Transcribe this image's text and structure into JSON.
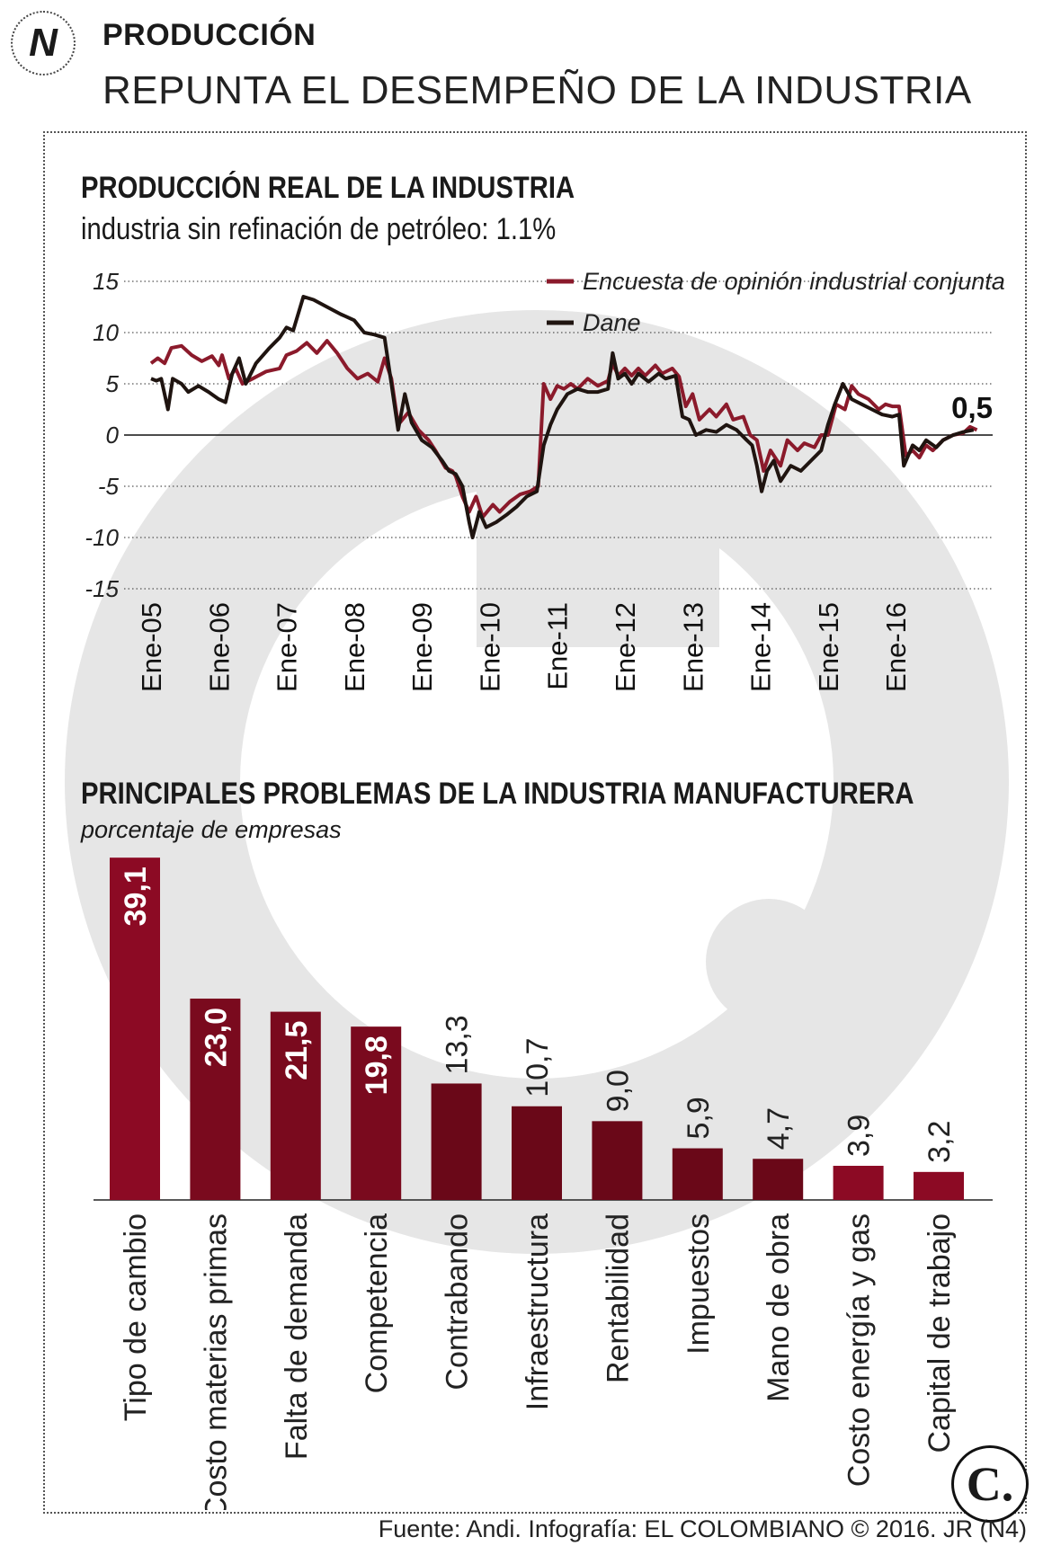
{
  "header": {
    "section": "PRODUCCIÓN",
    "title": "REPUNTA EL DESEMPEÑO DE LA INDUSTRIA"
  },
  "chart1": {
    "title": "PRODUCCIÓN REAL DE LA INDUSTRIA",
    "subtitle": "industria sin refinación de petróleo: 1.1%"
  },
  "chart2": {
    "title": "PRINCIPALES PROBLEMAS DE LA INDUSTRIA MANUFACTURERA",
    "subtitle": "porcentaje de empresas"
  },
  "footer": {
    "source": "Fuente: Andi. Infografía: EL COLOMBIANO © 2016. JR (N4)"
  },
  "chart_data": [
    {
      "type": "line",
      "ylim": [
        -15,
        15
      ],
      "yticks": [
        "15",
        "10",
        "5",
        "0",
        "-5",
        "-10",
        "-15"
      ],
      "xticks": [
        "Ene-05",
        "Ene-06",
        "Ene-07",
        "Ene-08",
        "Ene-09",
        "Ene-10",
        "Ene-11",
        "Ene-12",
        "Ene-13",
        "Ene-14",
        "Ene-15",
        "Ene-16"
      ],
      "grid": true,
      "legend_position": "top-right",
      "end_label": "0,5",
      "series": [
        {
          "name": "Encuesta de opinión industrial conjunta",
          "color": "#8b1a2b",
          "points": [
            [
              2005.0,
              7
            ],
            [
              2005.1,
              7.5
            ],
            [
              2005.2,
              7
            ],
            [
              2005.3,
              8.5
            ],
            [
              2005.45,
              8.7
            ],
            [
              2005.6,
              7.8
            ],
            [
              2005.75,
              7.2
            ],
            [
              2005.9,
              7.7
            ],
            [
              2006.0,
              6.8
            ],
            [
              2006.05,
              7.8
            ],
            [
              2006.15,
              5.5
            ],
            [
              2006.25,
              6.5
            ],
            [
              2006.35,
              5
            ],
            [
              2006.5,
              5.5
            ],
            [
              2006.7,
              6.2
            ],
            [
              2006.9,
              6.5
            ],
            [
              2007.0,
              7.8
            ],
            [
              2007.15,
              8.2
            ],
            [
              2007.3,
              9
            ],
            [
              2007.45,
              8
            ],
            [
              2007.6,
              9.2
            ],
            [
              2007.75,
              8
            ],
            [
              2007.9,
              6.5
            ],
            [
              2008.05,
              5.5
            ],
            [
              2008.2,
              6
            ],
            [
              2008.35,
              5.2
            ],
            [
              2008.45,
              7.5
            ],
            [
              2008.55,
              5.5
            ],
            [
              2008.65,
              1
            ],
            [
              2008.8,
              2.2
            ],
            [
              2008.95,
              0.5
            ],
            [
              2009.1,
              -0.5
            ],
            [
              2009.2,
              -1.5
            ],
            [
              2009.35,
              -3.2
            ],
            [
              2009.45,
              -3.5
            ],
            [
              2009.5,
              -4
            ],
            [
              2009.6,
              -6
            ],
            [
              2009.7,
              -7.5
            ],
            [
              2009.8,
              -6
            ],
            [
              2009.9,
              -8
            ],
            [
              2010.05,
              -6.8
            ],
            [
              2010.15,
              -7.5
            ],
            [
              2010.3,
              -6.5
            ],
            [
              2010.45,
              -5.8
            ],
            [
              2010.6,
              -5.5
            ],
            [
              2010.72,
              -5
            ],
            [
              2010.8,
              5
            ],
            [
              2010.9,
              3.5
            ],
            [
              2011.0,
              4.8
            ],
            [
              2011.1,
              4.5
            ],
            [
              2011.2,
              5
            ],
            [
              2011.3,
              4.5
            ],
            [
              2011.45,
              5.5
            ],
            [
              2011.6,
              4.8
            ],
            [
              2011.75,
              5.3
            ],
            [
              2011.82,
              7
            ],
            [
              2011.9,
              5.8
            ],
            [
              2012.0,
              6.5
            ],
            [
              2012.1,
              5.8
            ],
            [
              2012.2,
              6.5
            ],
            [
              2012.3,
              5.8
            ],
            [
              2012.45,
              6.8
            ],
            [
              2012.55,
              6
            ],
            [
              2012.7,
              6.5
            ],
            [
              2012.8,
              5.7
            ],
            [
              2012.9,
              2.8
            ],
            [
              2013.0,
              4
            ],
            [
              2013.1,
              1.5
            ],
            [
              2013.25,
              2.5
            ],
            [
              2013.35,
              1.8
            ],
            [
              2013.5,
              3
            ],
            [
              2013.6,
              1.5
            ],
            [
              2013.75,
              1.8
            ],
            [
              2013.85,
              0
            ],
            [
              2013.95,
              -0.5
            ],
            [
              2014.05,
              -3.5
            ],
            [
              2014.15,
              -1.5
            ],
            [
              2014.3,
              -3
            ],
            [
              2014.4,
              -0.5
            ],
            [
              2014.55,
              -1.5
            ],
            [
              2014.65,
              -0.8
            ],
            [
              2014.8,
              -1.2
            ],
            [
              2014.9,
              0
            ],
            [
              2015.0,
              0
            ],
            [
              2015.12,
              3
            ],
            [
              2015.25,
              2.5
            ],
            [
              2015.35,
              4.8
            ],
            [
              2015.45,
              4
            ],
            [
              2015.6,
              3.5
            ],
            [
              2015.75,
              2.5
            ],
            [
              2015.85,
              3
            ],
            [
              2015.95,
              2.8
            ],
            [
              2016.05,
              2.8
            ],
            [
              2016.15,
              -2
            ],
            [
              2016.25,
              -1.5
            ],
            [
              2016.35,
              -2.2
            ],
            [
              2016.45,
              -1
            ],
            [
              2016.55,
              -1.5
            ],
            [
              2016.7,
              -0.5
            ],
            [
              2016.85,
              0
            ],
            [
              2017.0,
              0.2
            ],
            [
              2017.1,
              0.8
            ],
            [
              2017.2,
              0.5
            ]
          ]
        },
        {
          "name": "Dane",
          "color": "#1f1410",
          "points": [
            [
              2005.0,
              5.5
            ],
            [
              2005.08,
              5.3
            ],
            [
              2005.15,
              5.5
            ],
            [
              2005.25,
              2.5
            ],
            [
              2005.32,
              5.5
            ],
            [
              2005.45,
              5
            ],
            [
              2005.55,
              4.2
            ],
            [
              2005.7,
              4.8
            ],
            [
              2005.85,
              4.2
            ],
            [
              2006.0,
              3.5
            ],
            [
              2006.1,
              3.2
            ],
            [
              2006.2,
              6
            ],
            [
              2006.3,
              7.5
            ],
            [
              2006.4,
              5
            ],
            [
              2006.55,
              7
            ],
            [
              2006.75,
              8.5
            ],
            [
              2006.9,
              9.5
            ],
            [
              2007.0,
              10.5
            ],
            [
              2007.1,
              10.2
            ],
            [
              2007.25,
              13.5
            ],
            [
              2007.4,
              13.2
            ],
            [
              2007.6,
              12.5
            ],
            [
              2007.8,
              11.8
            ],
            [
              2008.0,
              11.2
            ],
            [
              2008.15,
              10
            ],
            [
              2008.3,
              9.8
            ],
            [
              2008.45,
              9.5
            ],
            [
              2008.55,
              5
            ],
            [
              2008.65,
              0.5
            ],
            [
              2008.75,
              4
            ],
            [
              2008.85,
              1.2
            ],
            [
              2009.0,
              -0.5
            ],
            [
              2009.15,
              -1.2
            ],
            [
              2009.3,
              -2.5
            ],
            [
              2009.4,
              -3.5
            ],
            [
              2009.5,
              -3.8
            ],
            [
              2009.6,
              -5
            ],
            [
              2009.7,
              -8.5
            ],
            [
              2009.75,
              -10
            ],
            [
              2009.85,
              -7.5
            ],
            [
              2009.95,
              -9
            ],
            [
              2010.1,
              -8.5
            ],
            [
              2010.25,
              -7.8
            ],
            [
              2010.4,
              -7
            ],
            [
              2010.55,
              -6
            ],
            [
              2010.7,
              -5.5
            ],
            [
              2010.8,
              -1
            ],
            [
              2010.9,
              1
            ],
            [
              2011.0,
              2.5
            ],
            [
              2011.15,
              4
            ],
            [
              2011.3,
              4.5
            ],
            [
              2011.45,
              4.2
            ],
            [
              2011.6,
              4.2
            ],
            [
              2011.75,
              4.5
            ],
            [
              2011.82,
              8
            ],
            [
              2011.9,
              5.5
            ],
            [
              2012.0,
              6
            ],
            [
              2012.1,
              5
            ],
            [
              2012.2,
              6
            ],
            [
              2012.35,
              5.2
            ],
            [
              2012.5,
              6
            ],
            [
              2012.6,
              5.5
            ],
            [
              2012.75,
              5.8
            ],
            [
              2012.85,
              1.8
            ],
            [
              2012.95,
              1.5
            ],
            [
              2013.05,
              0
            ],
            [
              2013.2,
              0.5
            ],
            [
              2013.35,
              0.3
            ],
            [
              2013.5,
              1
            ],
            [
              2013.65,
              0.5
            ],
            [
              2013.8,
              -0.5
            ],
            [
              2013.88,
              -1
            ],
            [
              2013.95,
              -3
            ],
            [
              2014.02,
              -5.5
            ],
            [
              2014.1,
              -3.5
            ],
            [
              2014.2,
              -2.5
            ],
            [
              2014.3,
              -4.5
            ],
            [
              2014.45,
              -3
            ],
            [
              2014.6,
              -3.5
            ],
            [
              2014.75,
              -2.5
            ],
            [
              2014.9,
              -1.5
            ],
            [
              2015.0,
              1
            ],
            [
              2015.1,
              3
            ],
            [
              2015.22,
              5
            ],
            [
              2015.35,
              3.5
            ],
            [
              2015.5,
              3
            ],
            [
              2015.65,
              2.5
            ],
            [
              2015.8,
              2
            ],
            [
              2015.95,
              1.8
            ],
            [
              2016.05,
              2
            ],
            [
              2016.12,
              -3
            ],
            [
              2016.25,
              -1
            ],
            [
              2016.35,
              -1.5
            ],
            [
              2016.45,
              -0.5
            ],
            [
              2016.6,
              -1.2
            ],
            [
              2016.7,
              -0.5
            ],
            [
              2016.85,
              0
            ],
            [
              2017.0,
              0.3
            ],
            [
              2017.15,
              0.5
            ]
          ]
        }
      ]
    },
    {
      "type": "bar",
      "categories": [
        "Tipo de cambio",
        "Costo materias primas",
        "Falta de demanda",
        "Competencia",
        "Contrabando",
        "Infraestructura",
        "Rentabilidad",
        "Impuestos",
        "Mano de obra",
        "Costo energía y gas",
        "Capital de trabajo"
      ],
      "values": [
        39.1,
        23.0,
        21.5,
        19.8,
        13.3,
        10.7,
        9.0,
        5.9,
        4.7,
        3.9,
        3.2
      ],
      "value_labels": [
        "39,1",
        "23,0",
        "21,5",
        "19,8",
        "13,3",
        "10,7",
        "9,0",
        "5,9",
        "4,7",
        "3,9",
        "3,2"
      ],
      "colors": [
        "#8c0a24",
        "#7a0a1e",
        "#7a0a1e",
        "#7a0a1e",
        "#6a0818",
        "#6a0818",
        "#6a0818",
        "#6a0818",
        "#6a0818",
        "#8c0a24",
        "#8c0a24"
      ],
      "grid": false
    }
  ]
}
